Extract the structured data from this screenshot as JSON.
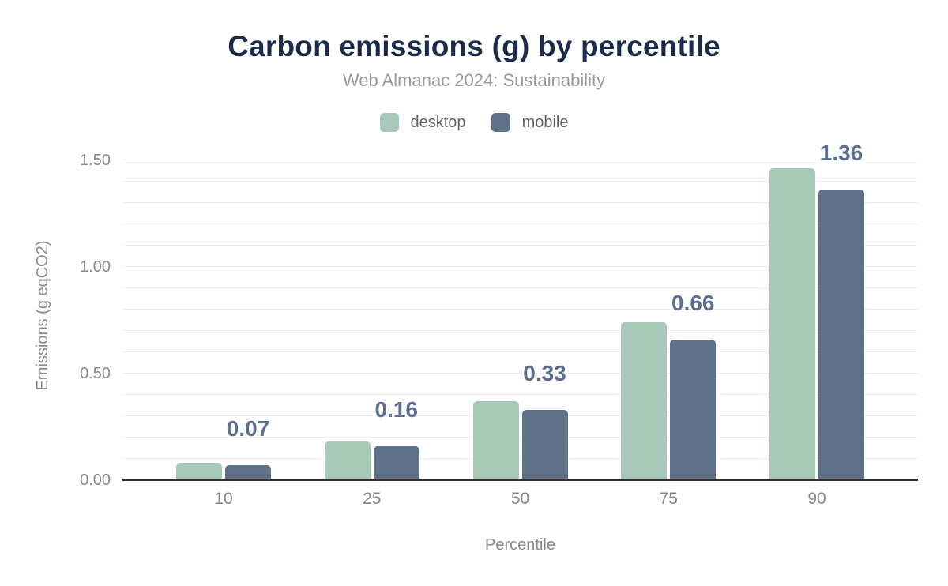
{
  "chart_data": {
    "type": "bar",
    "title": "Carbon emissions (g) by percentile",
    "subtitle": "Web Almanac 2024: Sustainability",
    "xlabel": "Percentile",
    "ylabel": "Emissions (g eqCO2)",
    "categories": [
      "10",
      "25",
      "50",
      "75",
      "90"
    ],
    "series": [
      {
        "name": "desktop",
        "color": "#a7c9b8",
        "values": [
          0.08,
          0.18,
          0.37,
          0.74,
          1.46
        ]
      },
      {
        "name": "mobile",
        "color": "#5f7089",
        "values": [
          0.07,
          0.16,
          0.33,
          0.66,
          1.36
        ]
      }
    ],
    "bar_labels": {
      "source_series": "mobile",
      "values": [
        "0.07",
        "0.16",
        "0.33",
        "0.66",
        "1.36"
      ],
      "color": "#5a6e91"
    },
    "y_ticks": [
      {
        "value": 0.0,
        "label": "0.00"
      },
      {
        "value": 0.5,
        "label": "0.50"
      },
      {
        "value": 1.0,
        "label": "1.00"
      },
      {
        "value": 1.5,
        "label": "1.50"
      }
    ],
    "ylim": [
      0,
      1.55
    ],
    "grid": {
      "show": true,
      "interval": 0.1,
      "max": 1.5,
      "color": "#ededed"
    },
    "legend_position": "top"
  },
  "colors": {
    "title": "#1b2b4b",
    "subtitle": "#9b9b9b",
    "axis_text": "#87898c",
    "axis_line": "#2d2d2d",
    "background": "#ffffff"
  }
}
